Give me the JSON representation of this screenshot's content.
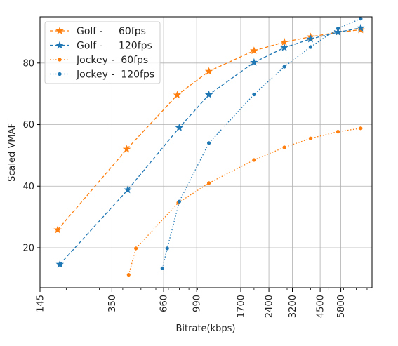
{
  "chart_data": {
    "type": "line",
    "title": "",
    "xlabel": "Bitrate(kbps)",
    "ylabel": "Scaled VMAF",
    "x_scale": "log",
    "x_ticks": [
      145,
      350,
      660,
      990,
      1700,
      2400,
      3200,
      4500,
      5800
    ],
    "x_tick_labels": [
      "145",
      "350",
      "660",
      "990",
      "1700",
      "2400",
      "3200",
      "4500",
      "5800"
    ],
    "xlim": [
      145,
      8500
    ],
    "y_ticks": [
      20,
      40,
      60,
      80
    ],
    "y_tick_labels": [
      "20",
      "40",
      "60",
      "80"
    ],
    "ylim": [
      7,
      95
    ],
    "grid": true,
    "legend_position": "upper-left",
    "series": [
      {
        "name": "Golf -     60fps",
        "color": "#ff7f0e",
        "line_style": "dashed",
        "marker": "star",
        "x": [
          180,
          420,
          780,
          1150,
          2000,
          2900,
          4000,
          5600,
          7400
        ],
        "y": [
          25.8,
          52,
          69.6,
          77.3,
          84,
          86.8,
          88.5,
          90,
          90.8
        ]
      },
      {
        "name": "Golf -     120fps",
        "color": "#1f77b4",
        "line_style": "dashed",
        "marker": "star",
        "x": [
          185,
          425,
          800,
          1150,
          2000,
          2900,
          4000,
          5600,
          7400
        ],
        "y": [
          14.6,
          38.8,
          59,
          69.7,
          80.2,
          85,
          87.8,
          90,
          91.4
        ]
      },
      {
        "name": "Jockey -  60fps",
        "color": "#ff7f0e",
        "line_style": "dotted",
        "marker": "dot",
        "x": [
          430,
          470,
          790,
          1150,
          2000,
          2900,
          4000,
          5600,
          7400
        ],
        "y": [
          11.2,
          19.8,
          34.6,
          41,
          48.5,
          52.6,
          55.5,
          57.7,
          58.8
        ]
      },
      {
        "name": "Jockey -  120fps",
        "color": "#1f77b4",
        "line_style": "dotted",
        "marker": "dot",
        "x": [
          650,
          690,
          800,
          1150,
          2000,
          2900,
          4000,
          5600,
          7400
        ],
        "y": [
          13.3,
          19.8,
          35,
          54,
          69.8,
          78.8,
          85.2,
          91.2,
          94.4
        ]
      }
    ]
  }
}
